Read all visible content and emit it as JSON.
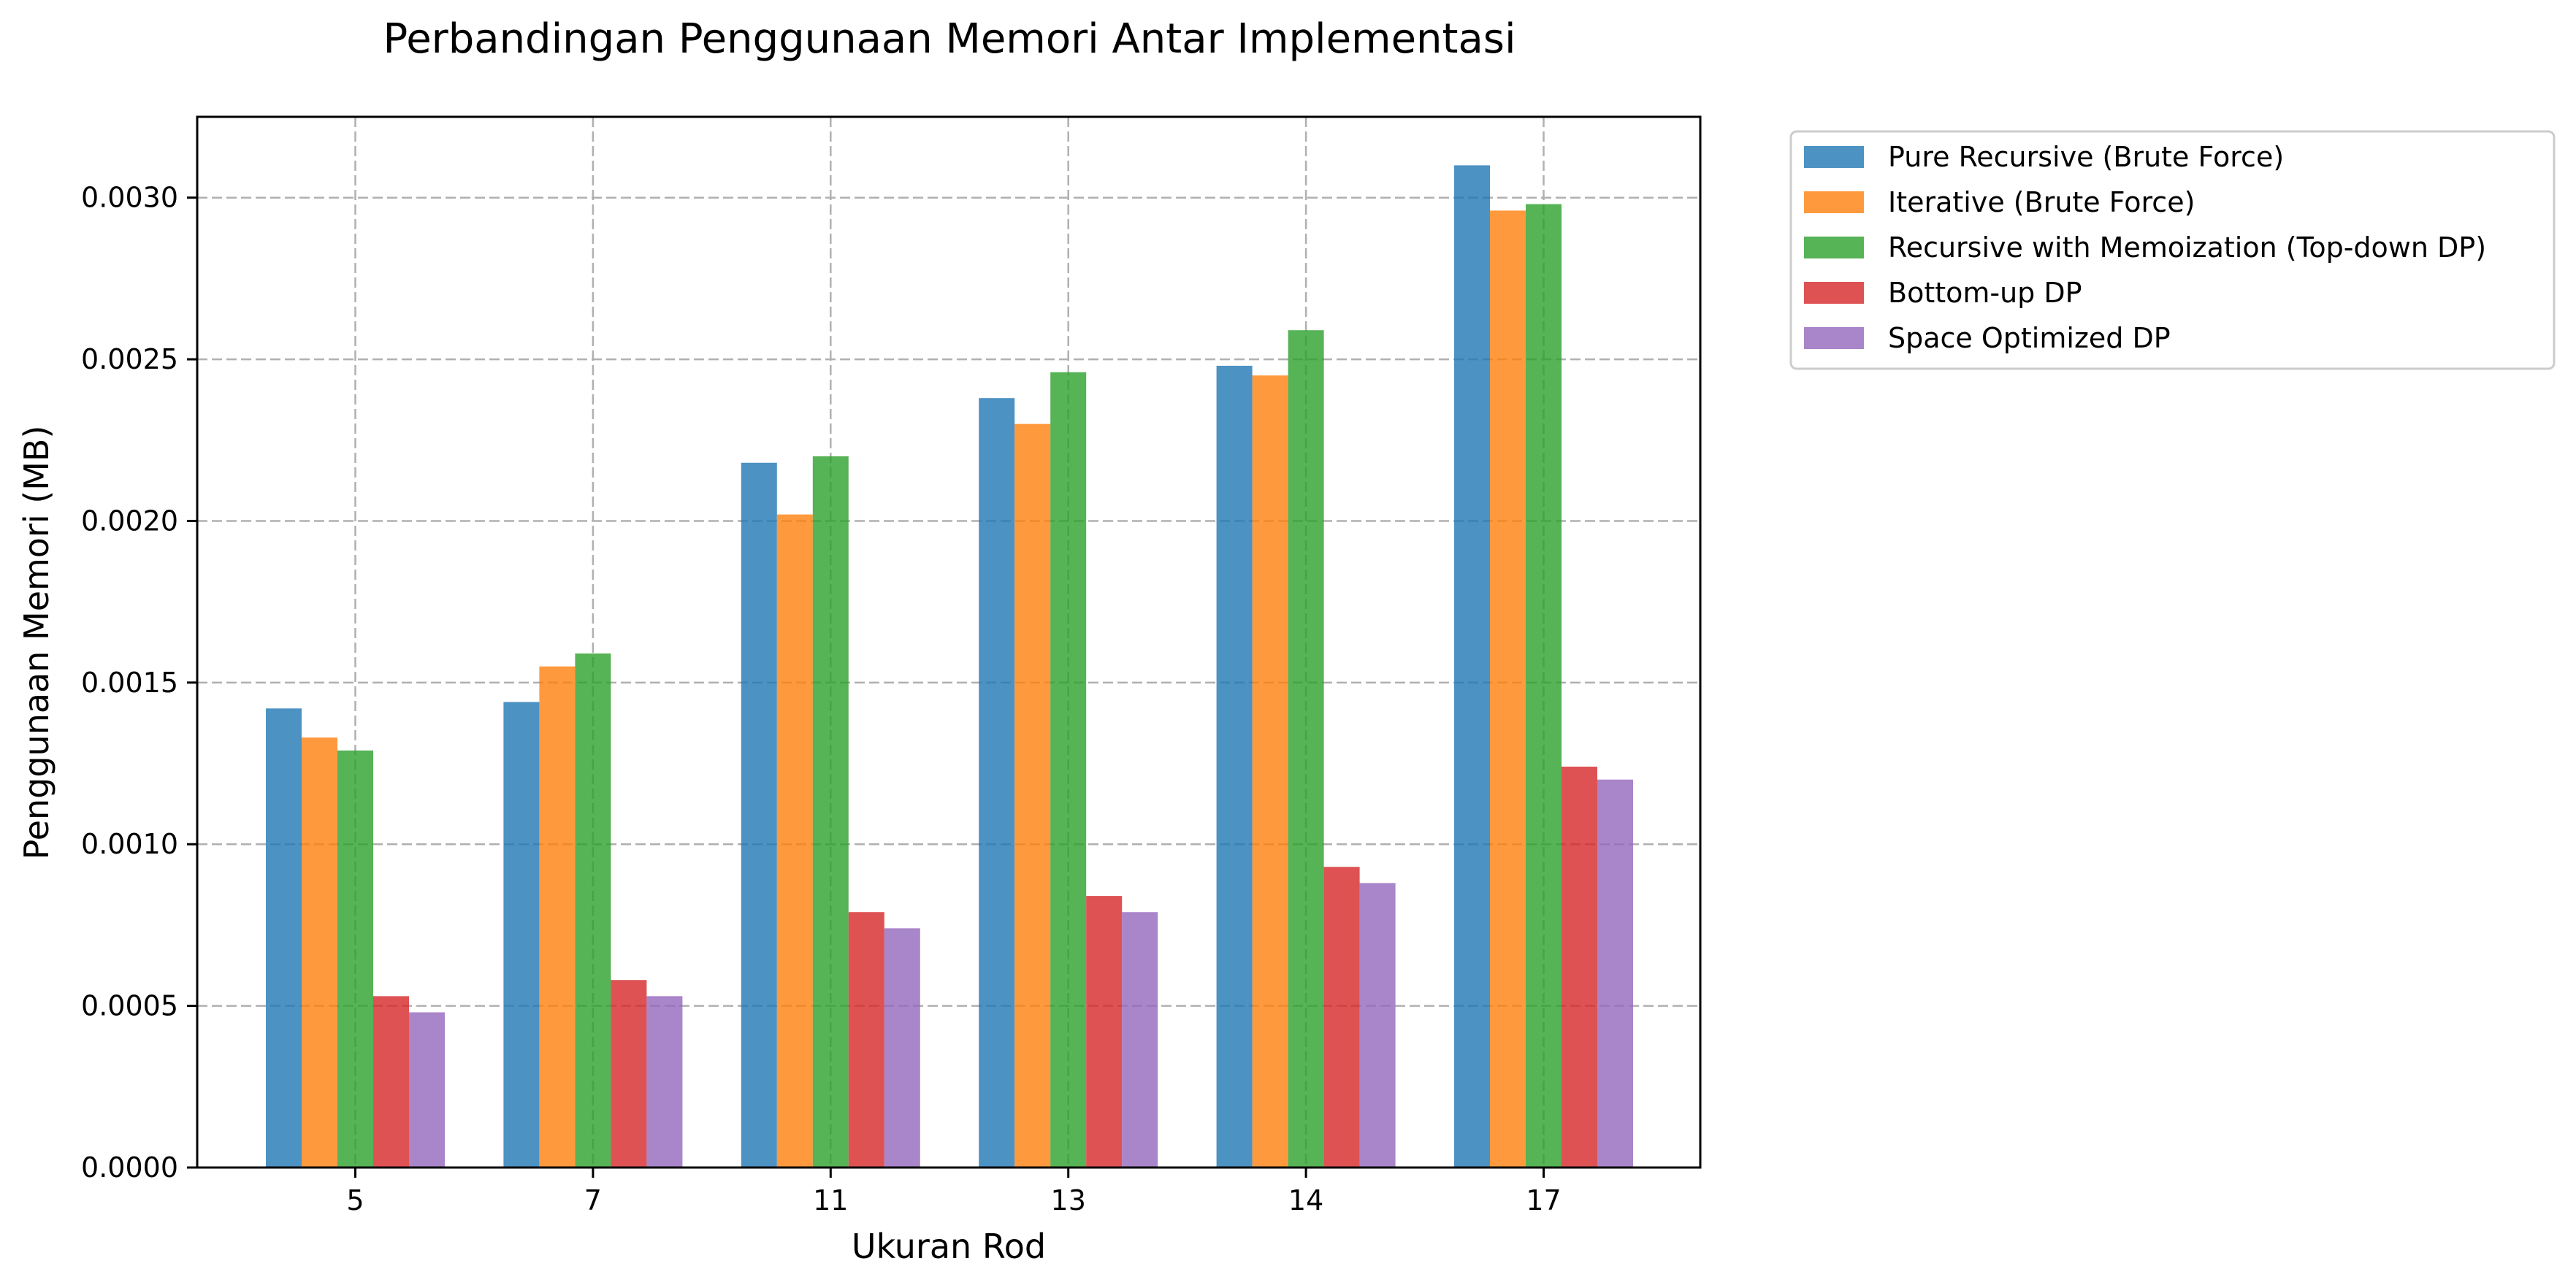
{
  "chart_data": {
    "type": "bar",
    "title": "Perbandingan Penggunaan Memori Antar Implementasi",
    "xlabel": "Ukuran Rod",
    "ylabel": "Penggunaan Memori (MB)",
    "categories": [
      "5",
      "7",
      "11",
      "13",
      "14",
      "17"
    ],
    "ylim": [
      0,
      0.00325
    ],
    "yticks": [
      "0.0000",
      "0.0005",
      "0.0010",
      "0.0015",
      "0.0020",
      "0.0025",
      "0.0030"
    ],
    "grid": true,
    "legend_position": "outside-top-right",
    "series": [
      {
        "name": "Pure Recursive (Brute Force)",
        "color": "#1f77b4",
        "values": [
          0.00142,
          0.00144,
          0.00218,
          0.00238,
          0.00248,
          0.0031
        ]
      },
      {
        "name": "Iterative (Brute Force)",
        "color": "#ff7f0e",
        "values": [
          0.00133,
          0.00155,
          0.00202,
          0.0023,
          0.00245,
          0.00296
        ]
      },
      {
        "name": "Recursive with Memoization (Top-down DP)",
        "color": "#2ca02c",
        "values": [
          0.00129,
          0.00159,
          0.0022,
          0.00246,
          0.00259,
          0.00298
        ]
      },
      {
        "name": "Bottom-up DP",
        "color": "#d62728",
        "values": [
          0.00053,
          0.00058,
          0.00079,
          0.00084,
          0.00093,
          0.00124
        ]
      },
      {
        "name": "Space Optimized DP",
        "color": "#9467bd",
        "values": [
          0.00048,
          0.00053,
          0.00074,
          0.00079,
          0.00088,
          0.0012
        ]
      }
    ]
  }
}
